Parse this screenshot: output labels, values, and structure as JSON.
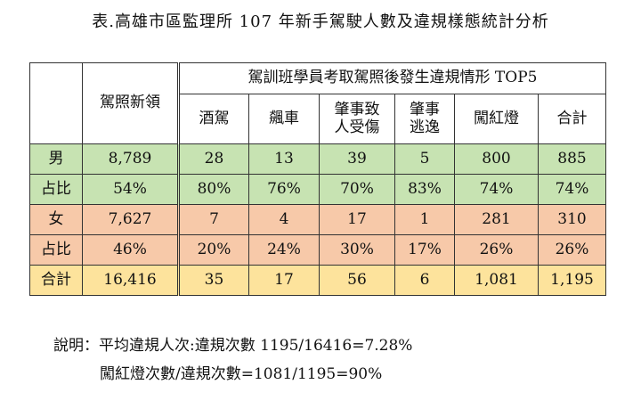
{
  "title": "表.高雄市區監理所 107 年新手駕駛人數及違規樣態統計分析",
  "header": {
    "license_label": "駕照新領",
    "group_label": "駕訓班學員考取駕照後發生違規情形 TOP5",
    "columns": [
      "酒駕",
      "飆車",
      "肇事致\n人受傷",
      "肇事\n逃逸",
      "闖紅燈",
      "合計"
    ]
  },
  "rows": [
    {
      "label": "男",
      "cells": [
        "8,789",
        "28",
        "13",
        "39",
        "5",
        "800",
        "885"
      ]
    },
    {
      "label": "占比",
      "cells": [
        "54%",
        "80%",
        "76%",
        "70%",
        "83%",
        "74%",
        "74%"
      ]
    },
    {
      "label": "女",
      "cells": [
        "7,627",
        "7",
        "4",
        "17",
        "1",
        "281",
        "310"
      ]
    },
    {
      "label": "占比",
      "cells": [
        "46%",
        "20%",
        "24%",
        "30%",
        "17%",
        "26%",
        "26%"
      ]
    },
    {
      "label": "合計",
      "cells": [
        "16,416",
        "35",
        "17",
        "56",
        "6",
        "1,081",
        "1,195"
      ]
    }
  ],
  "colors": {
    "male": "#c7e3b2",
    "female": "#f7c9a9",
    "total": "#fde39c"
  },
  "notes": {
    "line1": "說明：平均違規人次:違規次數 1195/16416=7.28%",
    "line2": "闖紅燈次數/違規次數=1081/1195=90%"
  }
}
